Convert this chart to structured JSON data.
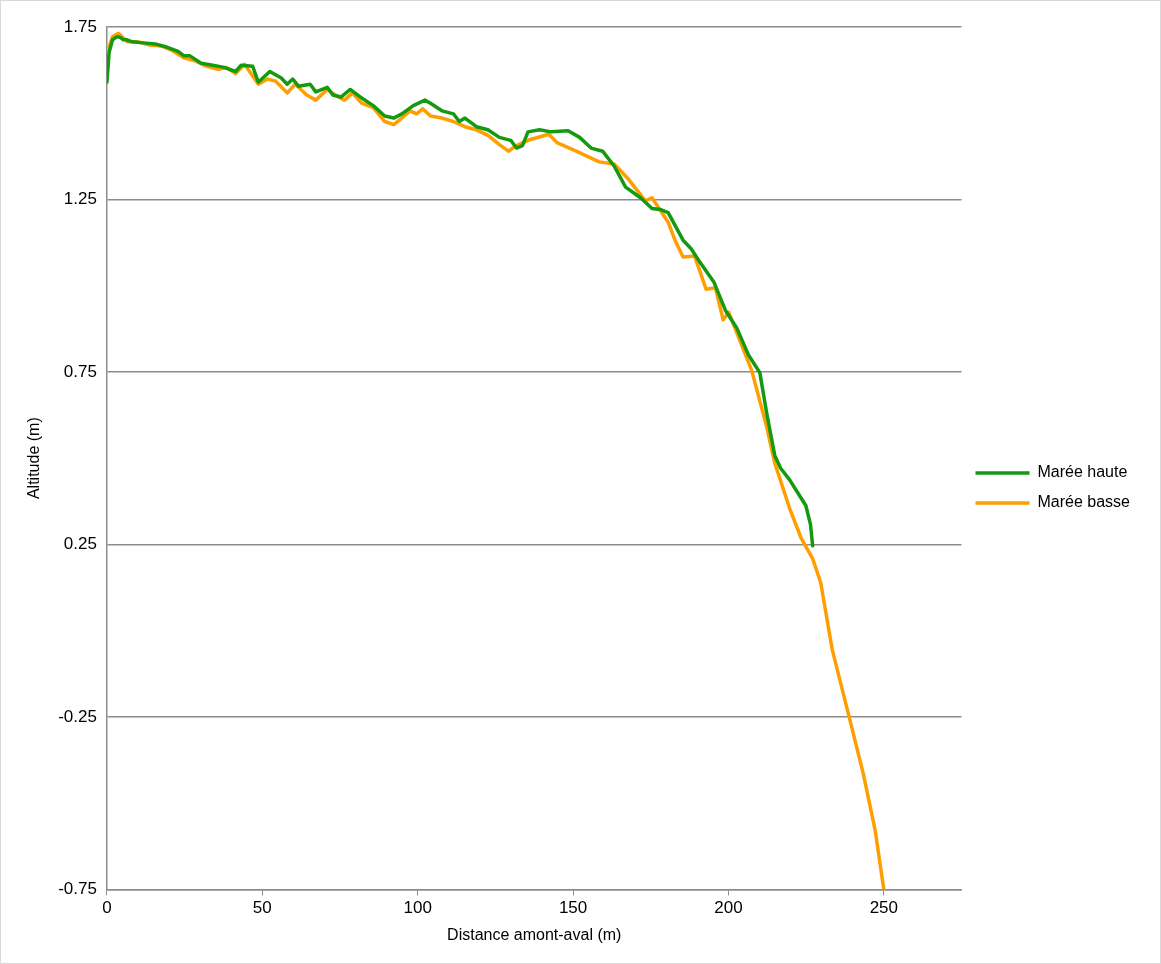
{
  "chart_data": {
    "type": "line",
    "xlabel": "Distance amont-aval (m)",
    "ylabel": "Altitude (m)",
    "xlim": [
      0,
      275
    ],
    "xticks": [
      0,
      50,
      100,
      150,
      200,
      250
    ],
    "ylim": [
      -0.75,
      1.75
    ],
    "yticks": [
      -0.75,
      -0.25,
      0.25,
      0.75,
      1.25,
      1.75
    ],
    "grid": "y",
    "legend": "right",
    "marker": "none",
    "line_style": "solid",
    "series": [
      {
        "name": "Marée haute",
        "color": "#139a0f",
        "x": [
          0,
          0.7,
          1.8,
          3.3,
          4.4,
          5.2,
          6.3,
          8.1,
          11.8,
          15.5,
          19.2,
          22.9,
          24.7,
          26.6,
          30.3,
          34.0,
          37.7,
          41.4,
          43.2,
          46.9,
          48.7,
          52.4,
          56.1,
          58.0,
          59.8,
          61.7,
          65.4,
          67.2,
          70.9,
          72.7,
          75.3,
          78.3,
          82.0,
          85.7,
          89.4,
          92.3,
          94.9,
          98.6,
          102.3,
          104.1,
          107.8,
          111.5,
          113.4,
          115.2,
          118.9,
          122.6,
          126.3,
          130.0,
          131.8,
          133.7,
          135.5,
          139.2,
          142.9,
          148.4,
          152.1,
          155.8,
          159.5,
          163.2,
          166.9,
          171.7,
          175.4,
          178.0,
          180.6,
          185.4,
          188.0,
          190.9,
          195.4,
          199.0,
          202.7,
          206.4,
          210.1,
          212.3,
          214.9,
          216.8,
          219.7,
          222.3,
          224.9,
          226.4,
          227.1
        ],
        "values": [
          1.59,
          1.677,
          1.713,
          1.722,
          1.719,
          1.713,
          1.713,
          1.707,
          1.704,
          1.701,
          1.692,
          1.679,
          1.667,
          1.667,
          1.645,
          1.639,
          1.633,
          1.621,
          1.639,
          1.636,
          1.59,
          1.621,
          1.602,
          1.584,
          1.599,
          1.578,
          1.584,
          1.562,
          1.575,
          1.553,
          1.547,
          1.569,
          1.544,
          1.522,
          1.492,
          1.486,
          1.498,
          1.522,
          1.538,
          1.529,
          1.507,
          1.498,
          1.476,
          1.486,
          1.461,
          1.452,
          1.43,
          1.421,
          1.399,
          1.406,
          1.446,
          1.452,
          1.446,
          1.449,
          1.43,
          1.399,
          1.39,
          1.347,
          1.286,
          1.255,
          1.224,
          1.221,
          1.212,
          1.132,
          1.107,
          1.067,
          1.009,
          0.929,
          0.877,
          0.8,
          0.748,
          0.631,
          0.508,
          0.471,
          0.437,
          0.4,
          0.363,
          0.308,
          0.246
        ]
      },
      {
        "name": "Marée basse",
        "color": "#ff9e00",
        "x": [
          0.7,
          1.8,
          3.7,
          5.2,
          6.6,
          10.0,
          13.7,
          17.4,
          21.0,
          24.7,
          28.4,
          32.1,
          35.8,
          38.4,
          41.4,
          44.3,
          48.7,
          51.7,
          54.3,
          58.0,
          60.6,
          64.3,
          67.2,
          70.9,
          73.9,
          76.4,
          79.0,
          82.0,
          85.7,
          89.4,
          92.3,
          94.9,
          97.5,
          99.7,
          101.6,
          104.1,
          107.8,
          111.5,
          115.2,
          118.9,
          122.6,
          126.3,
          129.2,
          131.8,
          136.3,
          142.2,
          144.8,
          151.0,
          158.4,
          163.2,
          168.0,
          173.2,
          175.4,
          180.6,
          182.8,
          185.4,
          189.1,
          192.8,
          195.8,
          198.3,
          200.1,
          207.5,
          212.3,
          214.9,
          219.7,
          223.4,
          227.1,
          229.7,
          233.4,
          238.9,
          243.4,
          247.2,
          250.0
        ],
        "values": [
          1.692,
          1.722,
          1.732,
          1.719,
          1.707,
          1.707,
          1.698,
          1.695,
          1.682,
          1.661,
          1.652,
          1.636,
          1.627,
          1.633,
          1.615,
          1.642,
          1.584,
          1.599,
          1.593,
          1.559,
          1.584,
          1.553,
          1.538,
          1.569,
          1.55,
          1.538,
          1.559,
          1.529,
          1.516,
          1.476,
          1.467,
          1.486,
          1.507,
          1.498,
          1.513,
          1.492,
          1.486,
          1.476,
          1.461,
          1.452,
          1.436,
          1.409,
          1.39,
          1.406,
          1.424,
          1.439,
          1.415,
          1.39,
          1.359,
          1.353,
          1.307,
          1.246,
          1.255,
          1.184,
          1.132,
          1.083,
          1.086,
          0.99,
          0.994,
          0.901,
          0.923,
          0.754,
          0.591,
          0.486,
          0.354,
          0.268,
          0.209,
          0.139,
          -0.055,
          -0.252,
          -0.415,
          -0.578,
          -0.75
        ]
      }
    ]
  }
}
